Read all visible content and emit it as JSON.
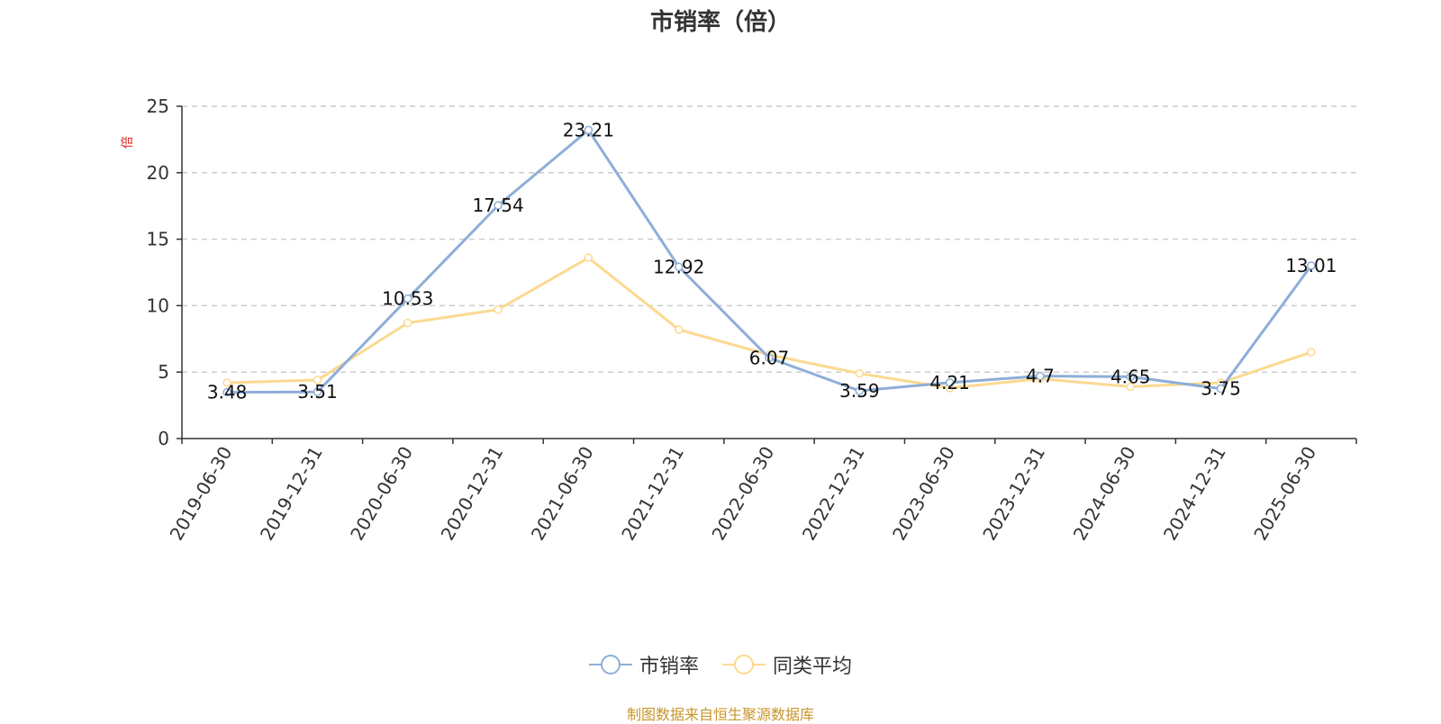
{
  "title": "市销率（倍）",
  "source": "制图数据来自恒生聚源数据库",
  "colors": {
    "series_1": "#8eaed8",
    "series_2": "#fcd990",
    "axis": "#333333",
    "grid": "#cccccc",
    "unit": "#e02020",
    "source": "#c8962a"
  },
  "chart_data": {
    "type": "line",
    "title": "市销率（倍）",
    "ylabel": "倍",
    "ylim": [
      0,
      25
    ],
    "yticks": [
      0,
      5,
      10,
      15,
      20,
      25
    ],
    "grid": true,
    "legend_position": "bottom-center",
    "categories": [
      "2019-06-30",
      "2019-12-31",
      "2020-06-30",
      "2020-12-31",
      "2021-06-30",
      "2021-12-31",
      "2022-06-30",
      "2022-12-31",
      "2023-06-30",
      "2023-12-31",
      "2024-06-30",
      "2024-12-31",
      "2025-06-30"
    ],
    "series": [
      {
        "name": "市销率",
        "values": [
          3.48,
          3.51,
          10.53,
          17.54,
          23.21,
          12.92,
          6.07,
          3.59,
          4.21,
          4.7,
          4.65,
          3.75,
          13.01
        ],
        "labels": [
          "3.48",
          "3.51",
          "10.53",
          "17.54",
          "23.21",
          "12.92",
          "6.07",
          "3.59",
          "4.21",
          "4.7",
          "4.65",
          "3.75",
          "13.01"
        ]
      },
      {
        "name": "同类平均",
        "values": [
          4.2,
          4.4,
          8.7,
          9.7,
          13.6,
          8.2,
          6.3,
          4.9,
          3.8,
          4.5,
          3.9,
          4.2,
          6.5
        ]
      }
    ]
  }
}
